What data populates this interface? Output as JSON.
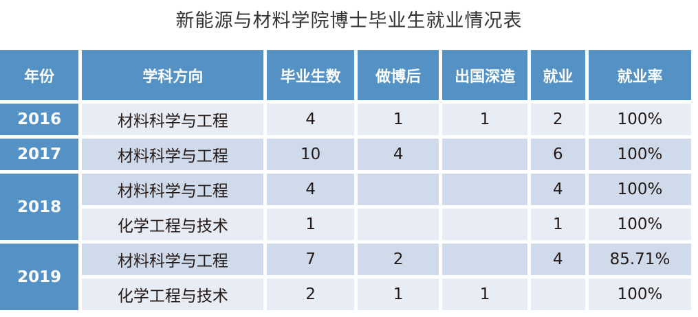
{
  "title": "新能源与材料学院博士毕业生就业情况表",
  "colors": {
    "header": "#5492c6",
    "row_light": "#e8edf5",
    "row_dark": "#cfdbeb"
  },
  "headers": [
    "年份",
    "学科方向",
    "毕业生数",
    "做博后",
    "出国深造",
    "就业",
    "就业率"
  ],
  "rows": [
    {
      "year": "2016",
      "span": 1,
      "shade": "light",
      "cells": [
        "材料科学与工程",
        "4",
        "1",
        "1",
        "2",
        "100%"
      ]
    },
    {
      "year": "2017",
      "span": 1,
      "shade": "dark",
      "cells": [
        "材料科学与工程",
        "10",
        "4",
        "",
        "6",
        "100%"
      ]
    },
    {
      "year": "2018",
      "span": 2,
      "shade": "dark",
      "cells": [
        "材料科学与工程",
        "4",
        "",
        "",
        "4",
        "100%"
      ]
    },
    {
      "year": null,
      "shade": "light",
      "cells": [
        "化学工程与技术",
        "1",
        "",
        "",
        "1",
        "100%"
      ]
    },
    {
      "year": "2019",
      "span": 2,
      "shade": "dark",
      "cells": [
        "材料科学与工程",
        "7",
        "2",
        "",
        "4",
        "85.71%"
      ]
    },
    {
      "year": null,
      "shade": "light",
      "cells": [
        "化学工程与技术",
        "2",
        "1",
        "1",
        "",
        "100%"
      ]
    }
  ]
}
